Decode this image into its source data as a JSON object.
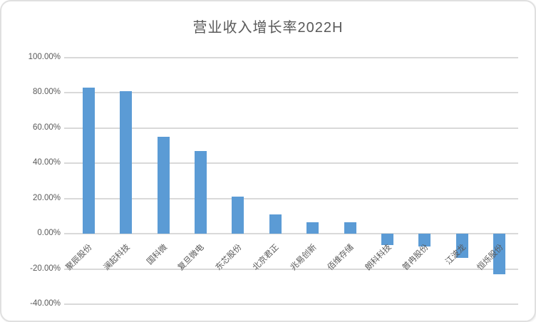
{
  "title": "营业收入增长率2022H",
  "colors": {
    "bar": "#5b9bd5",
    "gridline": "#d9d9d9",
    "text": "#595959",
    "frame_border": "#e0e0e0"
  },
  "chart_data": {
    "type": "bar",
    "title": "营业收入增长率2022H",
    "categories": [
      "聚辰股份",
      "澜起科技",
      "国科微",
      "复旦微电",
      "东芯股份",
      "北京君正",
      "兆易创新",
      "佰维存储",
      "朗科科技",
      "普冉股份",
      "江波龙",
      "恒烁股份"
    ],
    "values": [
      83.2,
      81.0,
      55.2,
      47.1,
      20.9,
      10.8,
      6.6,
      6.6,
      -6.6,
      -7.4,
      -13.5,
      -23.2
    ],
    "unit": "%",
    "xlabel": "",
    "ylabel": "",
    "ylim": [
      -40,
      100
    ],
    "ytick_step": 20,
    "ytick_labels": [
      "100.00%",
      "80.00%",
      "60.00%",
      "40.00%",
      "20.00%",
      "0.00%",
      "-20.00%",
      "-40.00%"
    ],
    "grid": true,
    "legend_position": "none"
  }
}
